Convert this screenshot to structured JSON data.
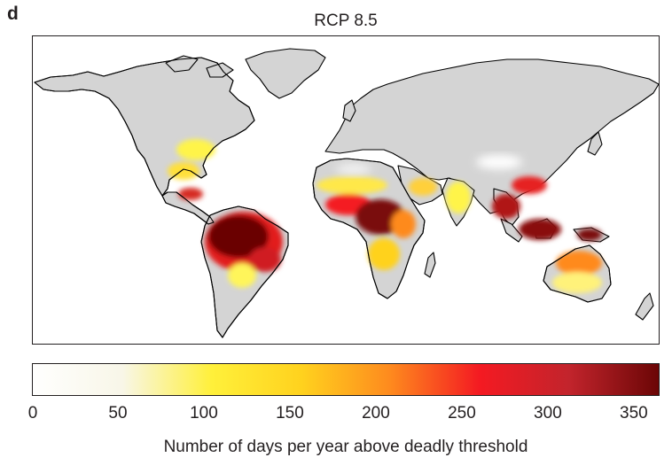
{
  "panel_label": "d",
  "title": "RCP 8.5",
  "map": {
    "projection": "world equirectangular",
    "no_data_land_color": "#d4d4d4",
    "ocean_color": "#ffffff",
    "coastline_color": "#000000"
  },
  "colorbar": {
    "label": "Number of days per year above deadly threshold",
    "min": 0,
    "max": 365,
    "ticks": [
      "0",
      "50",
      "100",
      "150",
      "200",
      "250",
      "300",
      "350"
    ],
    "tick_values": [
      0,
      50,
      100,
      150,
      200,
      250,
      300,
      350
    ],
    "colors": [
      "#fffffe",
      "#f8f6e8",
      "#fff03a",
      "#ffd21e",
      "#fe8a1e",
      "#f41a22",
      "#c2242c",
      "#6b0606"
    ]
  }
}
